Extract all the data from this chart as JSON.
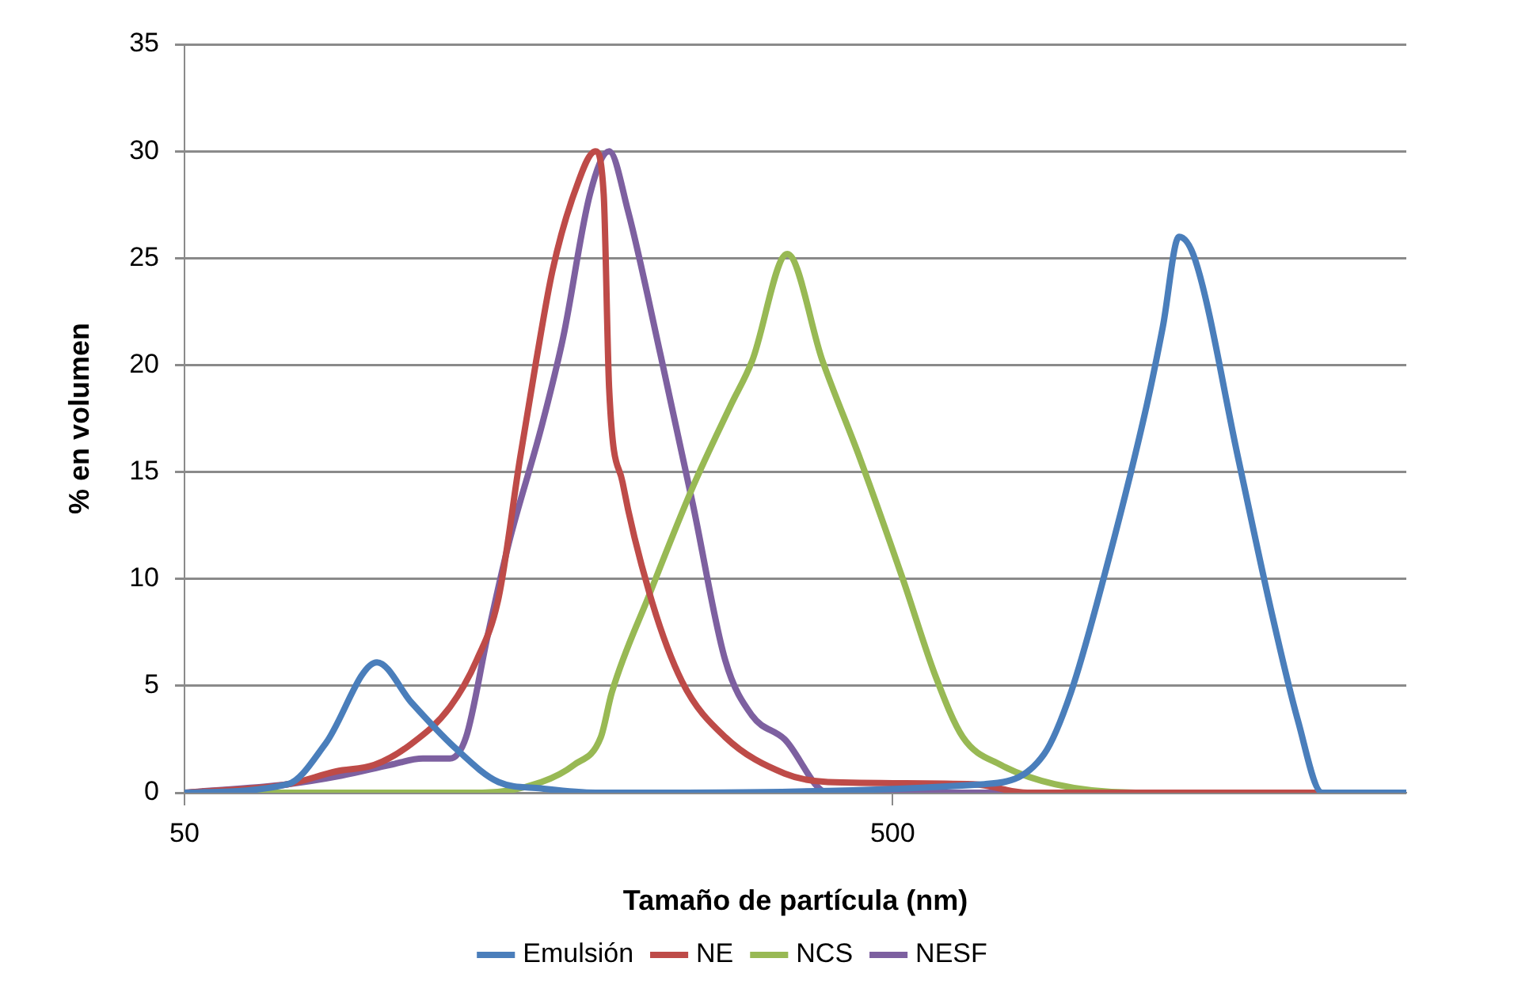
{
  "chart_data": {
    "type": "line",
    "xlabel": "Tamaño de partícula (nm)",
    "ylabel": "% en volumen",
    "log": "x",
    "grid": "y",
    "legend": "bottom",
    "marker": "none",
    "xlim": [
      50,
      2657
    ],
    "xticks": [
      50,
      500
    ],
    "ylim": [
      0,
      35
    ],
    "yticks": [
      0,
      5,
      10,
      15,
      20,
      25,
      30,
      35
    ],
    "series": [
      {
        "name": "Emulsión",
        "color": "#4a7ebb",
        "x": [
          50,
          70,
          79.1,
          93.5,
          104.7,
          120.5,
          138.8,
          159.3,
          190.3,
          674,
          818,
          893,
          1009,
          1142,
          1204,
          1269,
          1338,
          1539,
          1710,
          1867,
          2021,
          2657
        ],
        "values": [
          0,
          0.4,
          2.3,
          6.1,
          4.2,
          2.1,
          0.5,
          0.2,
          0,
          0.4,
          1.8,
          4.7,
          10.9,
          18.1,
          21.8,
          26,
          24.9,
          15.6,
          8.6,
          3.4,
          0,
          0
        ]
      },
      {
        "name": "NE",
        "color": "#be4b48",
        "x": [
          50,
          70,
          81.9,
          92.7,
          104.7,
          118.5,
          129.3,
          138.8,
          148.8,
          156.9,
          165.4,
          177.4,
          190.3,
          195.4,
          198.9,
          207.8,
          226.9,
          252.1,
          290.1,
          351.9,
          405.1,
          650.6,
          774.6,
          2657
        ],
        "values": [
          0,
          0.4,
          1,
          1.3,
          2.3,
          4,
          6.2,
          9.1,
          15.6,
          20.2,
          24.4,
          28,
          30,
          28,
          18.9,
          14.5,
          9.3,
          5.2,
          2.6,
          0.9,
          0.5,
          0.4,
          0,
          0
        ]
      },
      {
        "name": "NCS",
        "color": "#98b954",
        "x": [
          50,
          131.6,
          159.6,
          177.4,
          193.6,
          200.7,
          226.9,
          261.1,
          295.2,
          316.7,
          355,
          398,
          450,
          518,
          575.6,
          628.3,
          710.6,
          846.8,
          1102,
          2657
        ],
        "values": [
          0,
          0,
          0.5,
          1.3,
          2.6,
          4.7,
          9.3,
          14.3,
          18.1,
          20.2,
          25.2,
          20.2,
          15.6,
          9.9,
          5.4,
          2.6,
          1.3,
          0.4,
          0,
          0
        ]
      },
      {
        "name": "NESF",
        "color": "#7d60a0",
        "x": [
          50,
          70,
          83.4,
          97.6,
          108.5,
          118.5,
          124.9,
          133.9,
          143.6,
          159.6,
          171.3,
          186.9,
          198.9,
          211.5,
          235,
          261.1,
          290.1,
          316.7,
          351.9,
          405.1,
          2657
        ],
        "values": [
          0,
          0.4,
          0.8,
          1.3,
          1.6,
          1.6,
          2.6,
          7.3,
          11.7,
          17.1,
          21.3,
          28,
          30,
          27.2,
          20.5,
          13.5,
          6.2,
          3.6,
          2.5,
          0,
          0
        ]
      }
    ]
  }
}
